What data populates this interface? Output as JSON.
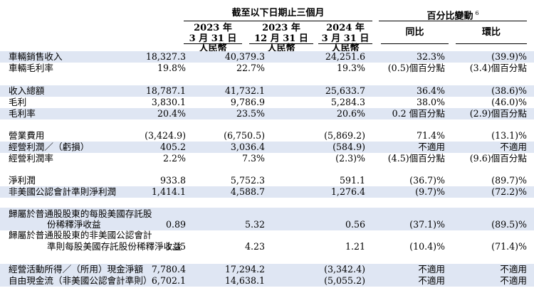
{
  "header": {
    "period_title": "截至以下日期止三個月",
    "change_title": "百分比變動",
    "change_note": "6",
    "columns": [
      {
        "year": "2023 年",
        "date": "3 月 31 日",
        "currency": "人民幣"
      },
      {
        "year": "2023 年",
        "date": "12 月 31 日",
        "currency": "人民幣"
      },
      {
        "year": "2024 年",
        "date": "3 月 31 日",
        "currency": "人民幣"
      }
    ],
    "change_columns": [
      "同比",
      "環比"
    ]
  },
  "rows": [
    {
      "label": "車輛銷售收入",
      "v": [
        "18,327.3",
        "40,379.3",
        "24,251.6",
        "32.3%",
        "(39.9)%"
      ]
    },
    {
      "label": "車輛毛利率",
      "v": [
        "19.8%",
        "22.7%",
        "19.3%",
        "(0.5)個百分點",
        "(3.4)個百分點"
      ]
    },
    {
      "label": "收入總額",
      "v": [
        "18,787.1",
        "41,732.1",
        "25,633.7",
        "36.4%",
        "(38.6)%"
      ]
    },
    {
      "label": "毛利",
      "v": [
        "3,830.1",
        "9,786.9",
        "5,284.3",
        "38.0%",
        "(46.0)%"
      ]
    },
    {
      "label": "毛利率",
      "v": [
        "20.4%",
        "23.5%",
        "20.6%",
        "0.2 個百分點",
        "(2.9)個百分點"
      ]
    },
    {
      "label": "營業費用",
      "v": [
        "(3,424.9)",
        "(6,750.5)",
        "(5,869.2)",
        "71.4%",
        "(13.1)%"
      ]
    },
    {
      "label": "經營利潤／（虧損）",
      "v": [
        "405.2",
        "3,036.4",
        "(584.9)",
        "不適用",
        "不適用"
      ]
    },
    {
      "label": "經營利潤率",
      "v": [
        "2.2%",
        "7.3%",
        "(2.3)%",
        "(4.5)個百分點",
        "(9.6)個百分點"
      ]
    },
    {
      "label": "淨利潤",
      "v": [
        "933.8",
        "5,752.3",
        "591.1",
        "(36.7)%",
        "(89.7)%"
      ]
    },
    {
      "label": "非美國公認會計準則淨利潤",
      "v": [
        "1,414.1",
        "4,588.7",
        "1,276.4",
        "(9.7)%",
        "(72.2)%"
      ]
    },
    {
      "label1": "歸屬於普通股股東的每股美國存託股",
      "label2": "份稀釋淨收益",
      "v": [
        "0.89",
        "5.32",
        "0.56",
        "(37.1)%",
        "(89.5)%"
      ]
    },
    {
      "label1": "歸屬於普通股股東的非美國公認會計",
      "label2": "準則每股美國存託股份稀釋淨收益",
      "v": [
        "1.35",
        "4.23",
        "1.21",
        "(10.4)%",
        "(71.4)%"
      ]
    },
    {
      "label": "經營活動所得／（所用）現金淨額",
      "v": [
        "7,780.4",
        "17,294.2",
        "(3,342.4)",
        "不適用",
        "不適用"
      ]
    },
    {
      "label": "自由現金流（非美國公認會計準則）",
      "v": [
        "6,702.1",
        "14,638.1",
        "(5,055.2)",
        "不適用",
        "不適用"
      ]
    }
  ]
}
